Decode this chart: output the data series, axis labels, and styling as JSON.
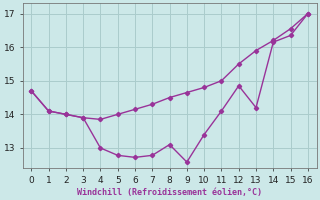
{
  "xlabel": "Windchill (Refroidissement éolien,°C)",
  "x_data": [
    0,
    1,
    2,
    3,
    4,
    5,
    6,
    7,
    8,
    9,
    10,
    11,
    12,
    13,
    14,
    15,
    16
  ],
  "line1_y": [
    14.7,
    14.1,
    14.0,
    13.9,
    13.85,
    14.0,
    14.15,
    14.3,
    14.5,
    14.65,
    14.8,
    15.0,
    15.5,
    15.9,
    16.2,
    16.55,
    17.0
  ],
  "line2_y": [
    14.7,
    14.1,
    14.0,
    13.9,
    13.0,
    12.78,
    12.72,
    12.78,
    13.1,
    12.58,
    13.4,
    14.1,
    14.85,
    14.2,
    16.15,
    16.35,
    17.0
  ],
  "line_color": "#993399",
  "bg_color": "#cce8e8",
  "grid_color": "#aacccc",
  "ylim_min": 12.4,
  "ylim_max": 17.3,
  "xlim_min": -0.5,
  "xlim_max": 16.5,
  "yticks": [
    13,
    14,
    15,
    16,
    17
  ],
  "xticks": [
    0,
    1,
    2,
    3,
    4,
    5,
    6,
    7,
    8,
    9,
    10,
    11,
    12,
    13,
    14,
    15,
    16
  ]
}
